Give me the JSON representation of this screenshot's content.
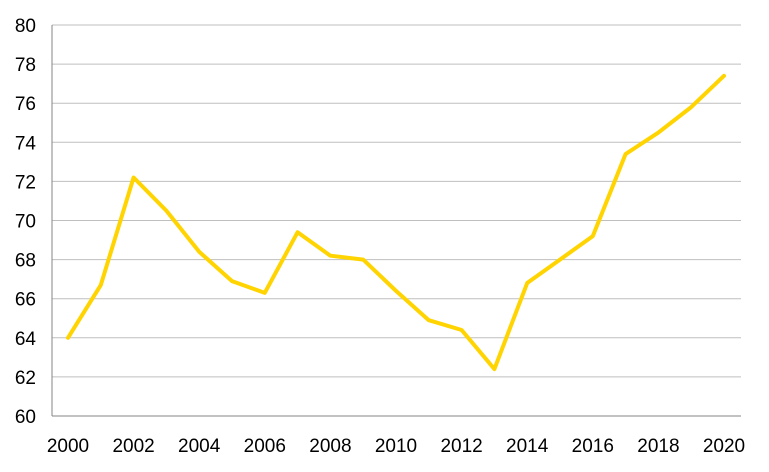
{
  "chart_data": {
    "type": "line",
    "title": "",
    "xlabel": "",
    "ylabel": "",
    "x": [
      2000,
      2001,
      2002,
      2003,
      2004,
      2005,
      2006,
      2007,
      2008,
      2009,
      2010,
      2011,
      2012,
      2013,
      2014,
      2015,
      2016,
      2017,
      2018,
      2019,
      2020
    ],
    "series": [
      {
        "values": [
          64.0,
          66.7,
          72.2,
          70.5,
          68.4,
          66.9,
          66.3,
          69.4,
          68.2,
          68.0,
          66.4,
          64.9,
          64.4,
          62.4,
          66.8,
          68.0,
          69.2,
          73.4,
          74.5,
          75.8,
          77.4
        ],
        "color": "#ffd400"
      }
    ],
    "xlim": [
      2000,
      2020
    ],
    "ylim": [
      60,
      80
    ],
    "x_ticks": [
      "2000",
      "2002",
      "2004",
      "2006",
      "2008",
      "2010",
      "2012",
      "2014",
      "2016",
      "2018",
      "2020"
    ],
    "y_ticks": [
      "60",
      "62",
      "64",
      "66",
      "68",
      "70",
      "72",
      "74",
      "76",
      "78",
      "80"
    ],
    "grid": "horizontal",
    "legend": "none",
    "colors": {
      "grid": "#bfbfbf",
      "axis": "#868686"
    }
  }
}
